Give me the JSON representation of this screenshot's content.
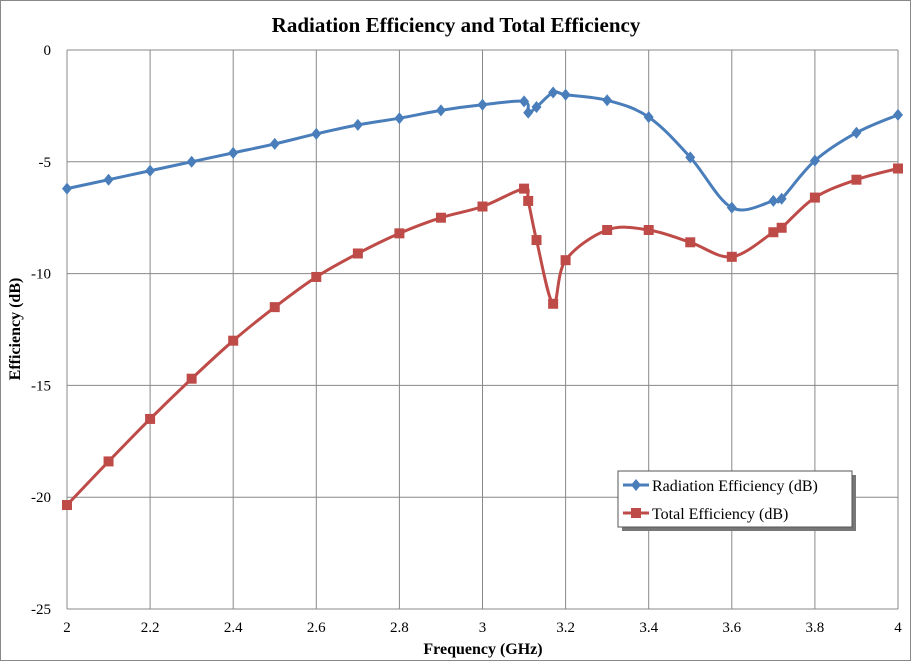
{
  "chart_data": {
    "type": "line",
    "title": "Radiation Efficiency and Total Efficiency",
    "xlabel": "Frequency (GHz)",
    "ylabel": "Efficiency (dB)",
    "xlim": [
      2,
      4
    ],
    "ylim": [
      -25,
      0
    ],
    "xticks": [
      2,
      2.2,
      2.4,
      2.6,
      2.8,
      3,
      3.2,
      3.4,
      3.6,
      3.8,
      4
    ],
    "yticks": [
      0,
      -5,
      -10,
      -15,
      -20,
      -25
    ],
    "grid": true,
    "legend_position": "bottom-right",
    "series": [
      {
        "name": "Radiation Efficiency (dB)",
        "color": "#4a7ebb",
        "marker": "diamond",
        "x": [
          2,
          2.1,
          2.2,
          2.3,
          2.4,
          2.5,
          2.6,
          2.7,
          2.8,
          2.9,
          3.0,
          3.1,
          3.11,
          3.13,
          3.17,
          3.2,
          3.3,
          3.4,
          3.5,
          3.6,
          3.7,
          3.72,
          3.8,
          3.9,
          4.0
        ],
        "y": [
          -6.2,
          -5.8,
          -5.4,
          -5.0,
          -4.6,
          -4.2,
          -3.75,
          -3.35,
          -3.05,
          -2.7,
          -2.45,
          -2.3,
          -2.8,
          -2.55,
          -1.9,
          -2.0,
          -2.25,
          -3.0,
          -4.8,
          -7.05,
          -6.75,
          -6.65,
          -4.95,
          -3.7,
          -2.9
        ]
      },
      {
        "name": "Total Efficiency (dB)",
        "color": "#be4b48",
        "marker": "square",
        "x": [
          2,
          2.1,
          2.2,
          2.3,
          2.4,
          2.5,
          2.6,
          2.7,
          2.8,
          2.9,
          3.0,
          3.1,
          3.11,
          3.13,
          3.17,
          3.2,
          3.3,
          3.4,
          3.5,
          3.6,
          3.7,
          3.72,
          3.8,
          3.9,
          4.0
        ],
        "y": [
          -20.35,
          -18.4,
          -16.5,
          -14.7,
          -13.0,
          -11.5,
          -10.15,
          -9.1,
          -8.2,
          -7.5,
          -7.0,
          -6.2,
          -6.75,
          -8.5,
          -11.35,
          -9.4,
          -8.05,
          -8.05,
          -8.6,
          -9.25,
          -8.15,
          -7.95,
          -6.6,
          -5.8,
          -5.3
        ]
      }
    ]
  }
}
